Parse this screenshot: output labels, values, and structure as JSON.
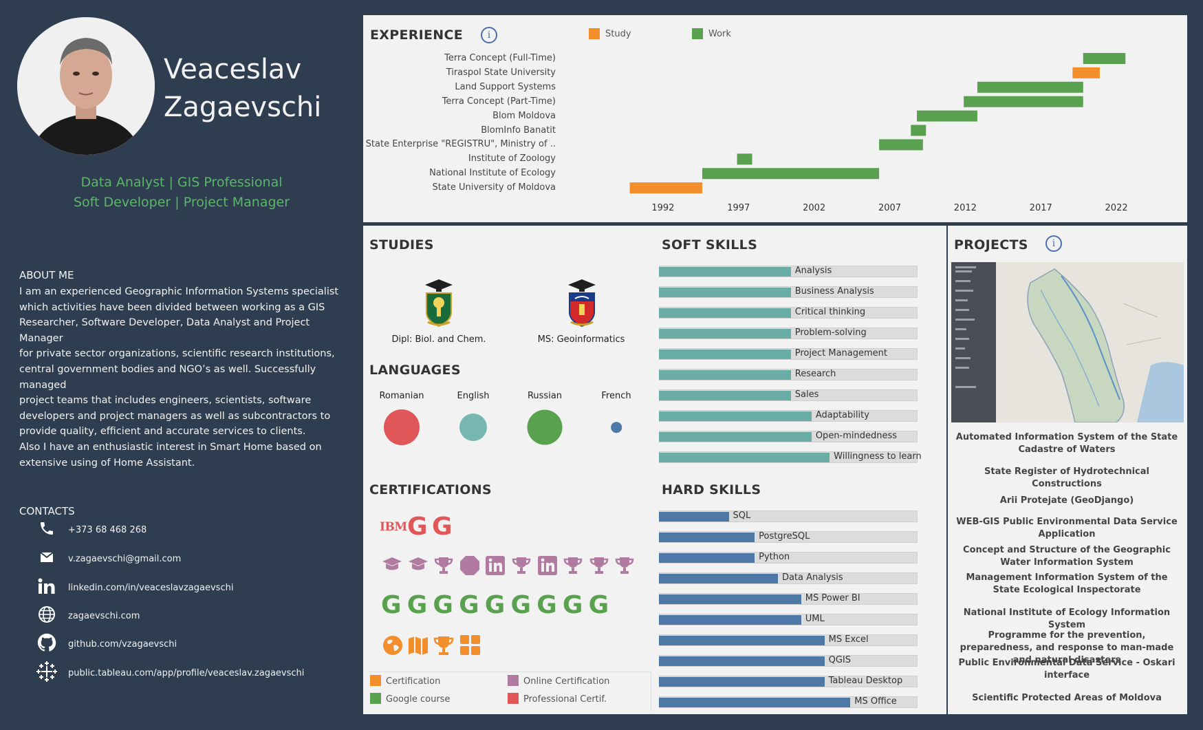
{
  "profile": {
    "first_name": "Veaceslav",
    "last_name": "Zagaevschi",
    "role_line1": "Data Analyst | GIS Professional",
    "role_line2": "Soft Developer | Project Manager"
  },
  "about": {
    "title": "ABOUT ME",
    "text": "I am an experienced Geographic Information Systems specialist\nwhich activities have been divided between working as a GIS\nResearcher, Software Developer, Data Analyst and Project Manager\nfor private sector organizations, scientific research institutions,\ncentral government bodies and NGO’s as well. Successfully managed\nproject teams that includes engineers, scientists, software\ndevelopers and project managers as well as subcontractors to\nprovide quality, efficient and accurate services to clients.\nAlso I have  an enthusiastic interest in Smart Home based on\nextensive using of Home Assistant."
  },
  "contacts": {
    "title": "CONTACTS",
    "items": [
      {
        "icon": "phone-icon",
        "text": "+373 68 468 268"
      },
      {
        "icon": "mail-icon",
        "text": "v.zagaevschi@gmail.com"
      },
      {
        "icon": "linkedin-icon",
        "text": "linkedin.com/in/veaceslavzagaevschi"
      },
      {
        "icon": "globe-icon",
        "text": "zagaevschi.com"
      },
      {
        "icon": "github-icon",
        "text": "github.com/vzagaevschi"
      },
      {
        "icon": "tableau-icon",
        "text": "public.tableau.com/app/profile/veaceslav.zagaevschi"
      }
    ]
  },
  "colors": {
    "study": "#f28e2b",
    "work": "#59a14f",
    "soft": "#6aada6",
    "hard": "#4e79a7",
    "certification": "#f28e2b",
    "online_certification": "#b07aa1",
    "google_course": "#59a14f",
    "professional_certif": "#e15759"
  },
  "experience": {
    "title": "EXPERIENCE",
    "legend": [
      {
        "label": "Study",
        "color": "#f28e2b"
      },
      {
        "label": "Work",
        "color": "#59a14f"
      }
    ],
    "chart_data": {
      "type": "bar",
      "orientation": "gantt",
      "xlim": [
        1987.5,
        2025.5
      ],
      "ticks": [
        "1992",
        "1997",
        "2002",
        "2007",
        "2012",
        "2017",
        "2022"
      ],
      "rows": [
        {
          "label": "Terra Concept (Full-Time)",
          "type": "Work",
          "start": 2019.8,
          "end": 2022.6
        },
        {
          "label": "Tiraspol State University",
          "type": "Study",
          "start": 2019.1,
          "end": 2020.9
        },
        {
          "label": "Land Support Systems",
          "type": "Work",
          "start": 2012.8,
          "end": 2019.8
        },
        {
          "label": "Terra Concept (Part-Time)",
          "type": "Work",
          "start": 2011.9,
          "end": 2019.8
        },
        {
          "label": "Blom Moldova",
          "type": "Work",
          "start": 2008.8,
          "end": 2012.8
        },
        {
          "label": "BlomInfo Banatit",
          "type": "Work",
          "start": 2008.4,
          "end": 2009.4
        },
        {
          "label": "State Enterprise \"REGISTRU\", Ministry of ..",
          "type": "Work",
          "start": 2006.3,
          "end": 2009.2
        },
        {
          "label": "Institute of Zoology",
          "type": "Work",
          "start": 1996.9,
          "end": 1997.9
        },
        {
          "label": "National Institute of Ecology",
          "type": "Work",
          "start": 1994.6,
          "end": 2006.3
        },
        {
          "label": "State University of Moldova",
          "type": "Study",
          "start": 1989.8,
          "end": 1994.6
        }
      ]
    }
  },
  "studies": {
    "title": "STUDIES",
    "items": [
      {
        "label": "Dipl: Biol. and Chem.",
        "icon": "university-crest-icon"
      },
      {
        "label": "MS: Geoinformatics",
        "icon": "university-crest-icon"
      }
    ]
  },
  "languages": {
    "title": "LANGUAGES",
    "items": [
      {
        "label": "Romanian",
        "color": "#e15759",
        "level": 1.0
      },
      {
        "label": "English",
        "color": "#76b7b2",
        "level": 0.77
      },
      {
        "label": "Russian",
        "color": "#59a14f",
        "level": 0.98
      },
      {
        "label": "French",
        "color": "#4e79a7",
        "level": 0.3
      }
    ]
  },
  "soft_skills": {
    "title": "SOFT SKILLS",
    "chart_data": {
      "type": "bar",
      "orientation": "horizontal",
      "categories": [
        "Analysis",
        "Business Analysis",
        "Critical thinking",
        "Problem-solving",
        "Project Management",
        "Research",
        "Sales",
        "Adaptability",
        "Open-mindedness",
        "Willingness to learn"
      ],
      "values": [
        0.51,
        0.51,
        0.51,
        0.51,
        0.51,
        0.51,
        0.51,
        0.59,
        0.59,
        0.66
      ],
      "xlim": [
        0,
        1
      ]
    }
  },
  "hard_skills": {
    "title": "HARD SKILLS",
    "chart_data": {
      "type": "bar",
      "orientation": "horizontal",
      "categories": [
        "SQL",
        "PostgreSQL",
        "Python",
        "Data Analysis",
        "MS Power BI",
        "UML",
        "MS Excel",
        "QGIS",
        "Tableau Desktop",
        "MS Office"
      ],
      "values": [
        0.27,
        0.37,
        0.37,
        0.46,
        0.55,
        0.55,
        0.64,
        0.64,
        0.64,
        0.74
      ],
      "xlim": [
        0,
        1
      ]
    }
  },
  "certifications": {
    "title": "CERTIFICATIONS",
    "ibm_text": "IBM",
    "g_letter": "G",
    "legend": [
      {
        "label": "Certification",
        "color": "#f28e2b"
      },
      {
        "label": "Online Certification",
        "color": "#b07aa1"
      },
      {
        "label": "Google course",
        "color": "#59a14f"
      },
      {
        "label": "Professional Certif.",
        "color": "#e15759"
      }
    ]
  },
  "projects": {
    "title": "PROJECTS",
    "items": [
      "Automated Information System of the State Cadastre of Waters",
      "State Register of Hydrotechnical Constructions",
      "Arii Protejate (GeoDjango)",
      "WEB-GIS Public Environmental Data Service Application",
      "Concept and Structure of the Geographic Water Information System",
      "Management Information System of the State Ecological Inspectorate",
      "National Institute of Ecology Information System",
      "Programme for the prevention, preparedness, and response to man-made and natural disasters",
      "Public Environmental Data Service - Oskari interface",
      "Scientific Protected Areas of Moldova"
    ]
  }
}
